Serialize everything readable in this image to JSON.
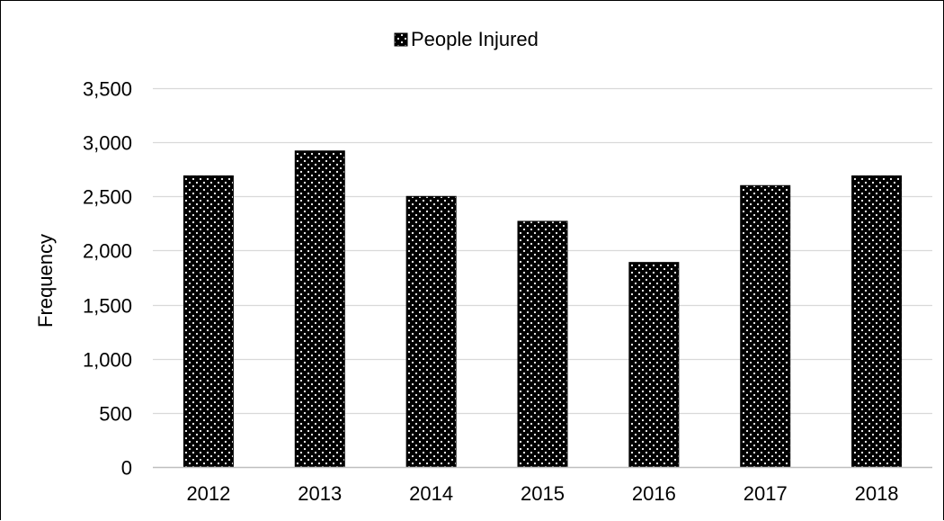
{
  "chart_data": {
    "type": "bar",
    "title": "",
    "xlabel": "",
    "ylabel": "Frequency",
    "categories": [
      "2012",
      "2013",
      "2014",
      "2015",
      "2016",
      "2017",
      "2018"
    ],
    "series": [
      {
        "name": "People Injured",
        "values": [
          2690,
          2920,
          2500,
          2270,
          1890,
          2600,
          2690
        ]
      }
    ],
    "ylim": [
      0,
      3500
    ],
    "yticks": [
      "0",
      "500",
      "1,000",
      "1,500",
      "2,000",
      "2,500",
      "3,000",
      "3,500"
    ],
    "grid": true,
    "legend_position": "top-center",
    "colors": {
      "bar_fill": "#000000",
      "bar_dots": "#ffffff",
      "gridline": "#d9d9d9",
      "axis": "#bfbfbf"
    }
  }
}
